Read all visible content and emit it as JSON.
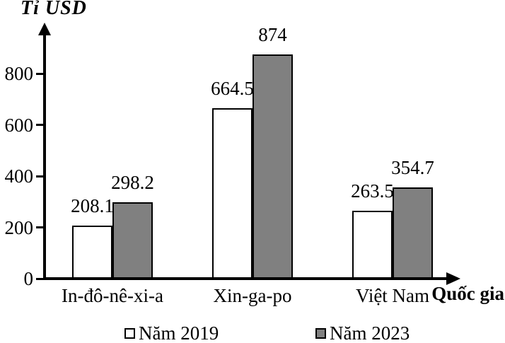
{
  "chart_data": {
    "type": "bar",
    "title": "Tỉ USD",
    "xlabel": "Quốc gia",
    "ylabel": "Tỉ USD",
    "categories": [
      "In-đô-nê-xi-a",
      "Xin-ga-po",
      "Việt Nam"
    ],
    "series": [
      {
        "name": "Năm 2019",
        "color": "#ffffff",
        "values": [
          208.1,
          664.5,
          263.5
        ]
      },
      {
        "name": "Năm 2023",
        "color": "#808080",
        "values": [
          298.2,
          874,
          354.7
        ]
      }
    ],
    "y_ticks": [
      0,
      200,
      400,
      600,
      800
    ],
    "ylim": [
      0,
      960
    ],
    "grid": false,
    "legend_position": "bottom",
    "bar_outline_color": "#000000",
    "axis_color": "#000000",
    "background_color": "#ffffff"
  }
}
